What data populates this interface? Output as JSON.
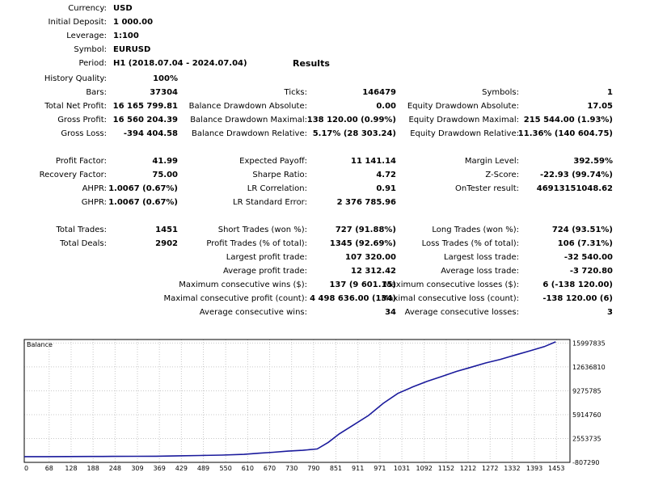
{
  "header": {
    "currency": {
      "label": "Currency:",
      "value": "USD"
    },
    "initial_deposit": {
      "label": "Initial Deposit:",
      "value": "1 000.00"
    },
    "leverage": {
      "label": "Leverage:",
      "value": "1:100"
    },
    "symbol": {
      "label": "Symbol:",
      "value": "EURUSD"
    },
    "period": {
      "label": "Period:",
      "value": "H1 (2018.07.04 - 2024.07.04)"
    },
    "results_title": "Results"
  },
  "stats": {
    "history_quality": {
      "label": "History Quality:",
      "value": "100%"
    },
    "bars": {
      "label": "Bars:",
      "value": "37304"
    },
    "ticks": {
      "label": "Ticks:",
      "value": "146479"
    },
    "symbols": {
      "label": "Symbols:",
      "value": "1"
    },
    "total_net_profit": {
      "label": "Total Net Profit:",
      "value": "16 165 799.81"
    },
    "balance_dd_abs": {
      "label": "Balance Drawdown Absolute:",
      "value": "0.00"
    },
    "equity_dd_abs": {
      "label": "Equity Drawdown Absolute:",
      "value": "17.05"
    },
    "gross_profit": {
      "label": "Gross Profit:",
      "value": "16 560 204.39"
    },
    "balance_dd_max": {
      "label": "Balance Drawdown Maximal:",
      "value": "138 120.00 (0.99%)"
    },
    "equity_dd_max": {
      "label": "Equity Drawdown Maximal:",
      "value": "215 544.00 (1.93%)"
    },
    "gross_loss": {
      "label": "Gross Loss:",
      "value": "-394 404.58"
    },
    "balance_dd_rel": {
      "label": "Balance Drawdown Relative:",
      "value": "5.17% (28 303.24)"
    },
    "equity_dd_rel": {
      "label": "Equity Drawdown Relative:",
      "value": "11.36% (140 604.75)"
    },
    "profit_factor": {
      "label": "Profit Factor:",
      "value": "41.99"
    },
    "expected_payoff": {
      "label": "Expected Payoff:",
      "value": "11 141.14"
    },
    "margin_level": {
      "label": "Margin Level:",
      "value": "392.59%"
    },
    "recovery_factor": {
      "label": "Recovery Factor:",
      "value": "75.00"
    },
    "sharpe_ratio": {
      "label": "Sharpe Ratio:",
      "value": "4.72"
    },
    "z_score": {
      "label": "Z-Score:",
      "value": "-22.93 (99.74%)"
    },
    "ahpr": {
      "label": "AHPR:",
      "value": "1.0067 (0.67%)"
    },
    "lr_correlation": {
      "label": "LR Correlation:",
      "value": "0.91"
    },
    "ontester_result": {
      "label": "OnTester result:",
      "value": "46913151048.62"
    },
    "ghpr": {
      "label": "GHPR:",
      "value": "1.0067 (0.67%)"
    },
    "lr_std_error": {
      "label": "LR Standard Error:",
      "value": "2 376 785.96"
    },
    "total_trades": {
      "label": "Total Trades:",
      "value": "1451"
    },
    "short_trades": {
      "label": "Short Trades (won %):",
      "value": "727 (91.88%)"
    },
    "long_trades": {
      "label": "Long Trades (won %):",
      "value": "724 (93.51%)"
    },
    "total_deals": {
      "label": "Total Deals:",
      "value": "2902"
    },
    "profit_trades": {
      "label": "Profit Trades (% of total):",
      "value": "1345 (92.69%)"
    },
    "loss_trades": {
      "label": "Loss Trades (% of total):",
      "value": "106 (7.31%)"
    },
    "largest_profit": {
      "label": "Largest profit trade:",
      "value": "107 320.00"
    },
    "largest_loss": {
      "label": "Largest loss trade:",
      "value": "-32 540.00"
    },
    "average_profit": {
      "label": "Average profit trade:",
      "value": "12 312.42"
    },
    "average_loss": {
      "label": "Average loss trade:",
      "value": "-3 720.80"
    },
    "max_cons_wins": {
      "label": "Maximum consecutive wins ($):",
      "value": "137 (9 601.15)"
    },
    "max_cons_losses": {
      "label": "Maximum consecutive losses ($):",
      "value": "6 (-138 120.00)"
    },
    "max_cons_profit": {
      "label": "Maximal consecutive profit (count):",
      "value": "4 498 636.00 (134)"
    },
    "max_cons_loss": {
      "label": "Maximal consecutive loss (count):",
      "value": "-138 120.00 (6)"
    },
    "avg_cons_wins": {
      "label": "Average consecutive wins:",
      "value": "34"
    },
    "avg_cons_losses": {
      "label": "Average consecutive losses:",
      "value": "3"
    }
  },
  "chart_data": {
    "type": "line",
    "title": "Balance",
    "xlabel": "",
    "ylabel": "",
    "x_ticks": [
      "0",
      "68",
      "128",
      "188",
      "248",
      "309",
      "369",
      "429",
      "489",
      "550",
      "610",
      "670",
      "730",
      "790",
      "851",
      "911",
      "971",
      "1031",
      "1092",
      "1152",
      "1212",
      "1272",
      "1332",
      "1393",
      "1453"
    ],
    "y_ticks": [
      "15997835",
      "12636810",
      "9275785",
      "5914760",
      "2553735",
      "-807290"
    ],
    "xlim": [
      0,
      1490
    ],
    "ylim": [
      -807290,
      16500000
    ],
    "grid": true,
    "line_color": "#1a1a9c",
    "series": [
      {
        "x": [
          0,
          60,
          120,
          180,
          240,
          300,
          360,
          420,
          480,
          540,
          600,
          640,
          680,
          720,
          760,
          800,
          830,
          860,
          900,
          940,
          980,
          1020,
          1060,
          1100,
          1140,
          1180,
          1220,
          1260,
          1300,
          1340,
          1380,
          1420,
          1451
        ],
        "y": [
          1000,
          1000,
          10000,
          25000,
          35000,
          45000,
          60000,
          110000,
          160000,
          220000,
          320000,
          480000,
          620000,
          780000,
          890000,
          1080000,
          2000000,
          3200000,
          4500000,
          5800000,
          7500000,
          8900000,
          9800000,
          10600000,
          11300000,
          12000000,
          12600000,
          13200000,
          13700000,
          14300000,
          14900000,
          15500000,
          16166800
        ]
      }
    ]
  }
}
